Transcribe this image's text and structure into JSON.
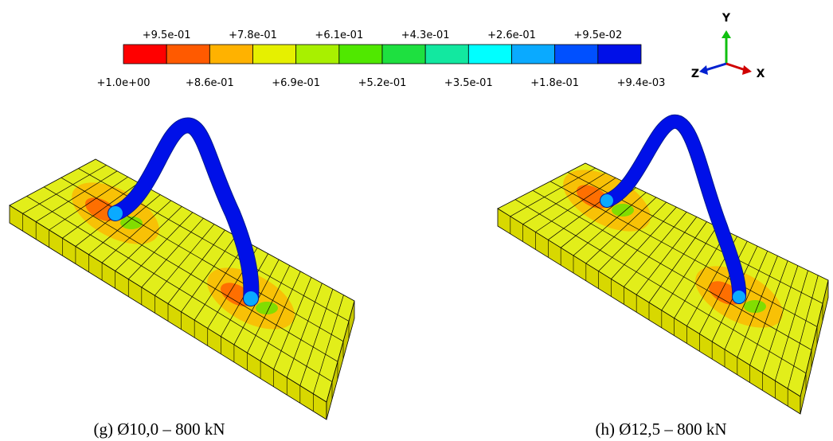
{
  "colorbar": {
    "colors": [
      "#ff0000",
      "#ff5a00",
      "#ffb200",
      "#e6f000",
      "#a8f000",
      "#50e800",
      "#1ee040",
      "#12e8a0",
      "#00ffff",
      "#0aaaff",
      "#0050ff",
      "#0010e8"
    ],
    "upper_labels": [
      "+9.5e-01",
      "+7.8e-01",
      "+6.1e-01",
      "+4.3e-01",
      "+2.6e-01",
      "+9.5e-02"
    ],
    "lower_labels": [
      "+1.0e+00",
      "+8.6e-01",
      "+6.9e-01",
      "+5.2e-01",
      "+3.5e-01",
      "+1.8e-01",
      "+9.4e-03"
    ]
  },
  "triad": {
    "y": "Y",
    "z": "Z",
    "x": "X"
  },
  "panels": [
    {
      "caption": "(g) Ø10,0 – 800 kN"
    },
    {
      "caption": "(h) Ø12,5 – 800 kN"
    }
  ]
}
